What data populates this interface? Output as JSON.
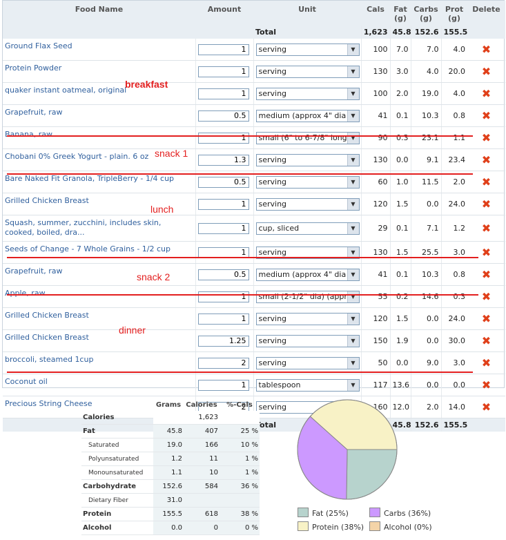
{
  "headers": {
    "name": "Food Name",
    "amount": "Amount",
    "unit": "Unit",
    "cals": "Cals",
    "fat": "Fat\n(g)",
    "carbs": "Carbs\n(g)",
    "prot": "Prot\n(g)",
    "del": "Delete"
  },
  "total": {
    "label": "Total",
    "cals": "1,623",
    "fat": "45.8",
    "carbs": "152.6",
    "prot": "155.5"
  },
  "foods": [
    {
      "name": "Ground Flax Seed",
      "amount": "1",
      "unit": "serving",
      "cals": "100",
      "fat": "7.0",
      "carbs": "7.0",
      "prot": "4.0"
    },
    {
      "name": "Protein Powder",
      "amount": "1",
      "unit": "serving",
      "cals": "130",
      "fat": "3.0",
      "carbs": "4.0",
      "prot": "20.0"
    },
    {
      "name": "quaker instant oatmeal, original",
      "amount": "1",
      "unit": "serving",
      "cals": "100",
      "fat": "2.0",
      "carbs": "19.0",
      "prot": "4.0"
    },
    {
      "name": "Grapefruit, raw",
      "amount": "0.5",
      "unit": "medium (approx 4\" dia",
      "cals": "41",
      "fat": "0.1",
      "carbs": "10.3",
      "prot": "0.8"
    },
    {
      "name": "Banana, raw",
      "amount": "1",
      "unit": "small (6\" to 6-7/8\" long",
      "cals": "90",
      "fat": "0.3",
      "carbs": "23.1",
      "prot": "1.1"
    },
    {
      "name": "Chobani 0% Greek Yogurt - plain. 6 oz",
      "amount": "1.3",
      "unit": "serving",
      "cals": "130",
      "fat": "0.0",
      "carbs": "9.1",
      "prot": "23.4"
    },
    {
      "name": "Bare Naked Fit Granola, TripleBerry - 1/4 cup",
      "amount": "0.5",
      "unit": "serving",
      "cals": "60",
      "fat": "1.0",
      "carbs": "11.5",
      "prot": "2.0"
    },
    {
      "name": "Grilled Chicken Breast",
      "amount": "1",
      "unit": "serving",
      "cals": "120",
      "fat": "1.5",
      "carbs": "0.0",
      "prot": "24.0"
    },
    {
      "name": "Squash, summer, zucchini, includes skin, cooked, boiled, dra...",
      "amount": "1",
      "unit": "cup, sliced",
      "cals": "29",
      "fat": "0.1",
      "carbs": "7.1",
      "prot": "1.2"
    },
    {
      "name": "Seeds of Change - 7 Whole Grains - 1/2 cup",
      "amount": "1",
      "unit": "serving",
      "cals": "130",
      "fat": "1.5",
      "carbs": "25.5",
      "prot": "3.0"
    },
    {
      "name": "Grapefruit, raw",
      "amount": "0.5",
      "unit": "medium (approx 4\" dia",
      "cals": "41",
      "fat": "0.1",
      "carbs": "10.3",
      "prot": "0.8"
    },
    {
      "name": "Apple, raw",
      "amount": "1",
      "unit": "small (2-1/2\" dia) (appr",
      "cals": "55",
      "fat": "0.2",
      "carbs": "14.6",
      "prot": "0.3"
    },
    {
      "name": "Grilled Chicken Breast",
      "amount": "1",
      "unit": "serving",
      "cals": "120",
      "fat": "1.5",
      "carbs": "0.0",
      "prot": "24.0"
    },
    {
      "name": "Grilled Chicken Breast",
      "amount": "1.25",
      "unit": "serving",
      "cals": "150",
      "fat": "1.9",
      "carbs": "0.0",
      "prot": "30.0"
    },
    {
      "name": "broccoli, steamed 1cup",
      "amount": "2",
      "unit": "serving",
      "cals": "50",
      "fat": "0.0",
      "carbs": "9.0",
      "prot": "3.0"
    },
    {
      "name": "Coconut oil",
      "amount": "1",
      "unit": "tablespoon",
      "cals": "117",
      "fat": "13.6",
      "carbs": "0.0",
      "prot": "0.0"
    },
    {
      "name": "Precious String Cheese",
      "amount": "2",
      "unit": "serving",
      "cals": "160",
      "fat": "12.0",
      "carbs": "2.0",
      "prot": "14.0"
    }
  ],
  "annotations": {
    "breakfast": "breakfast",
    "snack1": "snack 1",
    "lunch": "lunch",
    "snack2": "snack 2",
    "dinner": "dinner"
  },
  "nutrition": {
    "headers": {
      "grams": "Grams",
      "calories": "Calories",
      "pct": "%-Cals"
    },
    "rows": [
      {
        "label": "Calories",
        "grams": "",
        "calories": "1,623",
        "pct": ""
      },
      {
        "label": "Fat",
        "grams": "45.8",
        "calories": "407",
        "pct": "25 %"
      },
      {
        "label": "Saturated",
        "grams": "19.0",
        "calories": "166",
        "pct": "10 %"
      },
      {
        "label": "Polyunsaturated",
        "grams": "1.2",
        "calories": "11",
        "pct": "1 %"
      },
      {
        "label": "Monounsaturated",
        "grams": "1.1",
        "calories": "10",
        "pct": "1 %"
      },
      {
        "label": "Carbohydrate",
        "grams": "152.6",
        "calories": "584",
        "pct": "36 %"
      },
      {
        "label": "Dietary Fiber",
        "grams": "31.0",
        "calories": "",
        "pct": ""
      },
      {
        "label": "Protein",
        "grams": "155.5",
        "calories": "618",
        "pct": "38 %"
      },
      {
        "label": "Alcohol",
        "grams": "0.0",
        "calories": "0",
        "pct": "0 %"
      }
    ]
  },
  "chart_data": {
    "type": "pie",
    "series": [
      {
        "name": "Fat",
        "value": 25,
        "color": "#b7d3cd"
      },
      {
        "name": "Carbs",
        "value": 36,
        "color": "#cc99ff"
      },
      {
        "name": "Protein",
        "value": 38,
        "color": "#f8f2c6"
      },
      {
        "name": "Alcohol",
        "value": 0,
        "color": "#f4d4a8"
      }
    ],
    "legend": [
      "Fat (25%)",
      "Carbs (36%)",
      "Protein (38%)",
      "Alcohol (0%)"
    ]
  },
  "colors": {
    "accent": "#2f5f9d",
    "annotation": "#e31e1e",
    "delete": "#e0401a"
  }
}
